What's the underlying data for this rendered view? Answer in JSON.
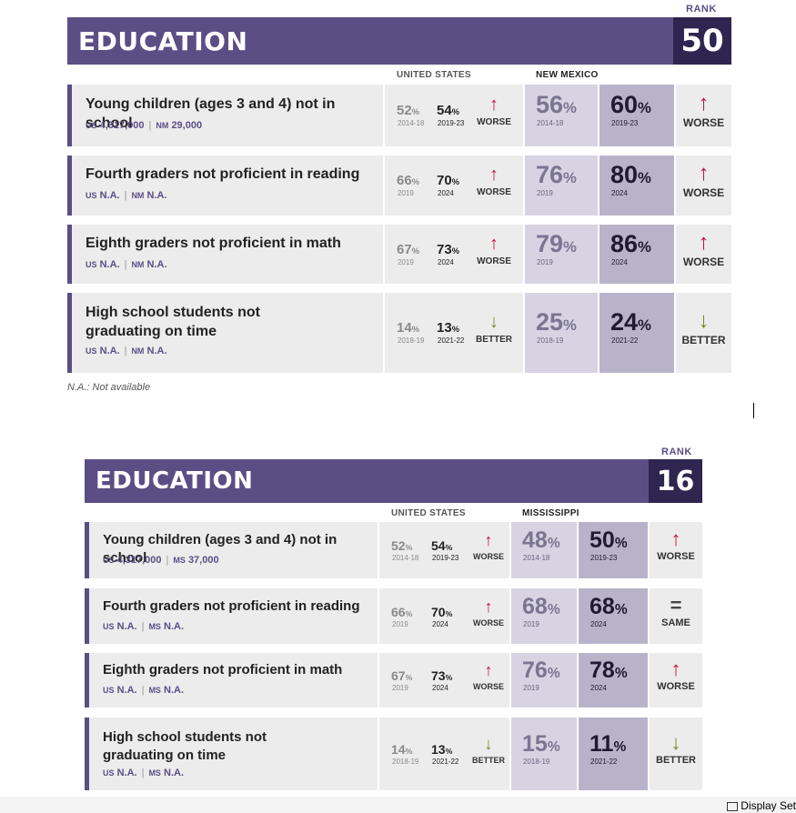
{
  "panels": [
    {
      "section_title": "EDUCATION",
      "rank_label": "RANK",
      "rank": "50",
      "us_header": "UNITED STATES",
      "state_header": "NEW MEXICO",
      "footnote": "N.A.: Not available",
      "rows": [
        {
          "title_lines": [
            "Young children (ages 3 and 4) not in school"
          ],
          "us_key": "US",
          "us_count": "4,317,000",
          "state_key": "NM",
          "state_count": "29,000",
          "us_v1": "52",
          "us_y1": "2014-18",
          "us_v2": "54",
          "us_y2": "2019-23",
          "us_arrow": "↑",
          "us_trend": "WORSE",
          "st_v1": "56",
          "st_y1": "2014-18",
          "st_v2": "60",
          "st_y2": "2019-23",
          "st_arrow": "↑",
          "st_trend": "WORSE",
          "trend_color": "#c8103e"
        },
        {
          "title_lines": [
            "Fourth graders not proficient in reading"
          ],
          "us_key": "US",
          "us_count": "N.A.",
          "state_key": "NM",
          "state_count": "N.A.",
          "us_v1": "66",
          "us_y1": "2019",
          "us_v2": "70",
          "us_y2": "2024",
          "us_arrow": "↑",
          "us_trend": "WORSE",
          "st_v1": "76",
          "st_y1": "2019",
          "st_v2": "80",
          "st_y2": "2024",
          "st_arrow": "↑",
          "st_trend": "WORSE",
          "trend_color": "#c8103e"
        },
        {
          "title_lines": [
            "Eighth graders not proficient in math"
          ],
          "us_key": "US",
          "us_count": "N.A.",
          "state_key": "NM",
          "state_count": "N.A.",
          "us_v1": "67",
          "us_y1": "2019",
          "us_v2": "73",
          "us_y2": "2024",
          "us_arrow": "↑",
          "us_trend": "WORSE",
          "st_v1": "79",
          "st_y1": "2019",
          "st_v2": "86",
          "st_y2": "2024",
          "st_arrow": "↑",
          "st_trend": "WORSE",
          "trend_color": "#c8103e"
        },
        {
          "title_lines": [
            "High school students not",
            "graduating on time"
          ],
          "us_key": "US",
          "us_count": "N.A.",
          "state_key": "NM",
          "state_count": "N.A.",
          "us_v1": "14",
          "us_y1": "2018-19",
          "us_v2": "13",
          "us_y2": "2021-22",
          "us_arrow": "↓",
          "us_trend": "BETTER",
          "st_v1": "25",
          "st_y1": "2018-19",
          "st_v2": "24",
          "st_y2": "2021-22",
          "st_arrow": "↓",
          "st_trend": "BETTER",
          "trend_color": "#6e8a1e"
        }
      ]
    },
    {
      "section_title": "EDUCATION",
      "rank_label": "RANK",
      "rank": "16",
      "us_header": "UNITED STATES",
      "state_header": "MISSISSIPPI",
      "footnote": "",
      "rows": [
        {
          "title_lines": [
            "Young children (ages 3 and 4) not in school"
          ],
          "us_key": "US",
          "us_count": "4,317,000",
          "state_key": "MS",
          "state_count": "37,000",
          "us_v1": "52",
          "us_y1": "2014-18",
          "us_v2": "54",
          "us_y2": "2019-23",
          "us_arrow": "↑",
          "us_trend": "WORSE",
          "st_v1": "48",
          "st_y1": "2014-18",
          "st_v2": "50",
          "st_y2": "2019-23",
          "st_arrow": "↑",
          "st_trend": "WORSE",
          "trend_color": "#c8103e"
        },
        {
          "title_lines": [
            "Fourth graders not proficient in reading"
          ],
          "us_key": "US",
          "us_count": "N.A.",
          "state_key": "MS",
          "state_count": "N.A.",
          "us_v1": "66",
          "us_y1": "2019",
          "us_v2": "70",
          "us_y2": "2024",
          "us_arrow": "↑",
          "us_trend": "WORSE",
          "st_v1": "68",
          "st_y1": "2019",
          "st_v2": "68",
          "st_y2": "2024",
          "st_arrow": "=",
          "st_trend": "SAME",
          "trend_color": "#444444"
        },
        {
          "title_lines": [
            "Eighth graders not proficient in math"
          ],
          "us_key": "US",
          "us_count": "N.A.",
          "state_key": "MS",
          "state_count": "N.A.",
          "us_v1": "67",
          "us_y1": "2019",
          "us_v2": "73",
          "us_y2": "2024",
          "us_arrow": "↑",
          "us_trend": "WORSE",
          "st_v1": "76",
          "st_y1": "2019",
          "st_v2": "78",
          "st_y2": "2024",
          "st_arrow": "↑",
          "st_trend": "WORSE",
          "trend_color": "#c8103e"
        },
        {
          "title_lines": [
            "High school students not",
            "graduating on time"
          ],
          "us_key": "US",
          "us_count": "N.A.",
          "state_key": "MS",
          "state_count": "N.A.",
          "us_v1": "14",
          "us_y1": "2018-19",
          "us_v2": "13",
          "us_y2": "2021-22",
          "us_arrow": "↓",
          "us_trend": "BETTER",
          "st_v1": "15",
          "st_y1": "2018-19",
          "st_v2": "11",
          "st_y2": "2021-22",
          "st_arrow": "↓",
          "st_trend": "BETTER",
          "trend_color": "#6e8a1e"
        }
      ]
    }
  ],
  "taskbar": {
    "label": "Display Set"
  }
}
